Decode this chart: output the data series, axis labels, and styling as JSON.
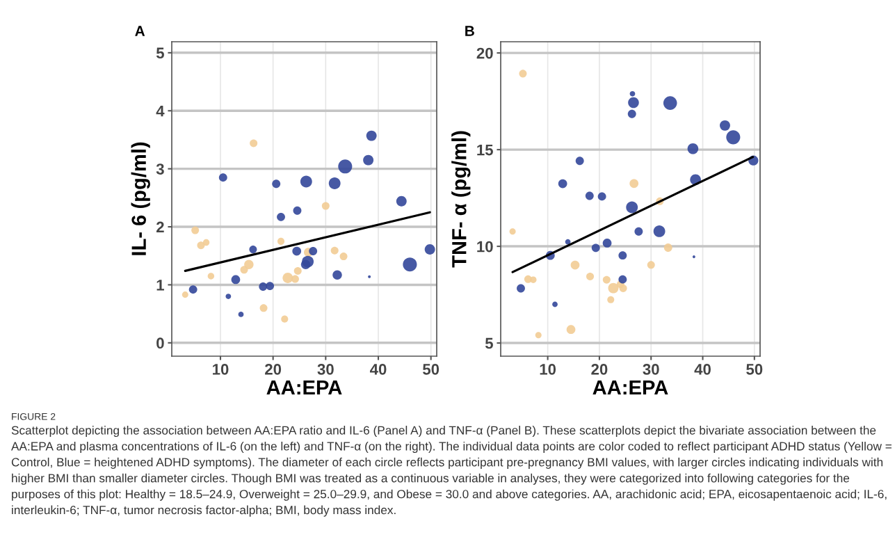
{
  "chart_data": [
    {
      "type": "bubble",
      "title": "A",
      "xlabel": "AA:EPA",
      "ylabel": "IL- 6 (pg/ml)",
      "xlim": [
        0.75,
        51.1
      ],
      "ylim": [
        -0.23,
        5.19
      ],
      "xticks": [
        10,
        20,
        30,
        40,
        50
      ],
      "yticks": [
        0,
        1,
        2,
        3,
        4,
        5
      ],
      "grid": true,
      "annotations": [
        "FIGURE 2",
        "Scatterplot depicting the association between AA:EPA ratio and IL-6 (Panel A) and TNF-α (Panel B). These scatterplots depict the bivariate association between the AA:EPA and plasma concentrations of IL-6 (on the left) and TNF-α (on the right). The individual data points are color coded to reflect participant ADHD status (Yellow = Control, Blue = heightened ADHD symptoms). The diameter of each circle reflects participant pre-pregnancy BMI values, with larger circles indicating individuals with higher BMI than smaller diameter circles. Though BMI was treated as a continuous variable in analyses, they were categorized into following categories for the purposes of this plot: Healthy = 18.5–24.9, Overweight = 25.0–29.9, and Obese = 30.0 and above categories. AA, arachidonic acid; EPA, eicosapentaenoic acid; IL-6, interleukin-6; TNF-α, tumor necrosis factor-alpha; BMI, body mass index."
      ],
      "series": [
        {
          "marker": "circle",
          "color": "#f2cc95",
          "x": [
            3.3,
            5.2,
            6.3,
            7.3,
            8.2,
            16.3,
            15.4,
            14.5,
            18.2,
            21.5,
            22.2,
            22.8,
            24.2,
            24.7,
            26.7,
            30.0,
            31.7,
            33.4
          ],
          "values": [
            0.83,
            1.94,
            1.68,
            1.73,
            1.15,
            3.44,
            1.35,
            1.26,
            0.6,
            1.75,
            0.41,
            1.12,
            1.1,
            1.24,
            1.56,
            2.36,
            1.59,
            1.49
          ],
          "sizes": [
            0.2,
            0.3,
            0.3,
            0.22,
            0.22,
            0.3,
            0.45,
            0.3,
            0.3,
            0.25,
            0.25,
            0.55,
            0.3,
            0.3,
            0.4,
            0.3,
            0.3,
            0.3
          ]
        },
        {
          "marker": "circle",
          "color": "#33479a",
          "x": [
            4.8,
            10.5,
            11.5,
            12.9,
            13.9,
            16.2,
            18.1,
            19.4,
            20.6,
            21.5,
            24.6,
            24.5,
            26.3,
            26.2,
            26.6,
            27.6,
            31.7,
            32.2,
            33.7,
            38.1,
            38.7,
            38.3,
            44.4,
            46.0,
            49.8
          ],
          "values": [
            0.92,
            2.85,
            0.8,
            1.09,
            0.49,
            1.61,
            0.97,
            0.98,
            2.74,
            2.17,
            2.28,
            1.58,
            2.78,
            1.35,
            1.4,
            1.58,
            2.75,
            1.17,
            3.04,
            3.15,
            3.57,
            1.14,
            2.44,
            1.35,
            1.61
          ],
          "sizes": [
            0.35,
            0.35,
            0.15,
            0.4,
            0.15,
            0.3,
            0.35,
            0.35,
            0.35,
            0.35,
            0.35,
            0.4,
            0.7,
            0.45,
            0.7,
            0.35,
            0.7,
            0.45,
            1,
            0.55,
            0.55,
            0.04,
            0.55,
            1,
            0.55
          ]
        },
        {
          "type": "line",
          "color": "#000000",
          "x": [
            3.3,
            49.8
          ],
          "values": [
            1.24,
            2.25
          ]
        }
      ]
    },
    {
      "type": "bubble",
      "title": "B",
      "xlabel": "AA:EPA",
      "ylabel": "TNF- α (pg/ml)",
      "xlim": [
        0.9,
        51.1
      ],
      "ylim": [
        4.32,
        20.58
      ],
      "xticks": [
        10,
        20,
        30,
        40,
        50
      ],
      "yticks": [
        5,
        10,
        15,
        20
      ],
      "grid": true,
      "series": [
        {
          "marker": "circle",
          "color": "#f2cc95",
          "x": [
            5.2,
            3.2,
            6.2,
            7.2,
            8.2,
            15.3,
            14.5,
            18.2,
            21.4,
            22.2,
            22.7,
            24.1,
            24.6,
            26.7,
            30.0,
            31.7,
            33.3
          ],
          "values": [
            18.93,
            10.77,
            8.3,
            8.27,
            5.41,
            9.03,
            5.7,
            8.44,
            8.27,
            7.24,
            7.84,
            8.04,
            7.83,
            13.25,
            9.04,
            12.33,
            9.93
          ],
          "sizes": [
            0.3,
            0.2,
            0.3,
            0.22,
            0.2,
            0.4,
            0.4,
            0.3,
            0.3,
            0.25,
            0.55,
            0.3,
            0.3,
            0.4,
            0.3,
            0.3,
            0.35
          ]
        },
        {
          "marker": "circle",
          "color": "#33479a",
          "x": [
            4.8,
            11.4,
            10.5,
            12.9,
            13.9,
            16.2,
            18.1,
            19.3,
            20.5,
            21.5,
            24.5,
            24.5,
            26.4,
            26.6,
            26.3,
            26.3,
            27.6,
            31.6,
            33.7,
            38.1,
            38.6,
            38.3,
            44.3,
            45.9,
            49.8
          ],
          "values": [
            7.83,
            7.0,
            9.53,
            13.24,
            10.23,
            14.42,
            12.61,
            9.92,
            12.58,
            10.17,
            9.53,
            8.29,
            17.89,
            17.43,
            16.85,
            12.02,
            10.77,
            10.78,
            17.41,
            15.05,
            13.45,
            9.46,
            16.25,
            15.64,
            14.44
          ],
          "sizes": [
            0.35,
            0.15,
            0.4,
            0.4,
            0.15,
            0.35,
            0.35,
            0.35,
            0.35,
            0.4,
            0.35,
            0.35,
            0.15,
            0.6,
            0.35,
            0.7,
            0.35,
            0.7,
            0.95,
            0.6,
            0.6,
            0.04,
            0.55,
            1,
            0.5
          ]
        },
        {
          "type": "line",
          "color": "#000000",
          "x": [
            3.2,
            49.7
          ],
          "values": [
            8.67,
            14.62
          ]
        }
      ]
    }
  ]
}
